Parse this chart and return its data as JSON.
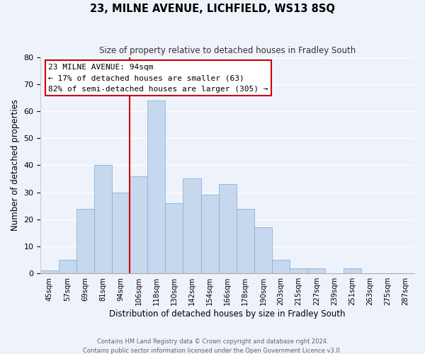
{
  "title": "23, MILNE AVENUE, LICHFIELD, WS13 8SQ",
  "subtitle": "Size of property relative to detached houses in Fradley South",
  "xlabel": "Distribution of detached houses by size in Fradley South",
  "ylabel": "Number of detached properties",
  "footer_line1": "Contains HM Land Registry data © Crown copyright and database right 2024.",
  "footer_line2": "Contains public sector information licensed under the Open Government Licence v3.0.",
  "bin_labels": [
    "45sqm",
    "57sqm",
    "69sqm",
    "81sqm",
    "94sqm",
    "106sqm",
    "118sqm",
    "130sqm",
    "142sqm",
    "154sqm",
    "166sqm",
    "178sqm",
    "190sqm",
    "203sqm",
    "215sqm",
    "227sqm",
    "239sqm",
    "251sqm",
    "263sqm",
    "275sqm",
    "287sqm"
  ],
  "bar_values": [
    1,
    5,
    24,
    40,
    30,
    36,
    64,
    26,
    35,
    29,
    33,
    24,
    17,
    5,
    2,
    2,
    0,
    2,
    0,
    0,
    0
  ],
  "bar_color": "#c5d8ee",
  "bar_edge_color": "#8ab4d8",
  "highlight_x_label": "94sqm",
  "highlight_line_color": "#cc0000",
  "annotation_title": "23 MILNE AVENUE: 94sqm",
  "annotation_line1": "← 17% of detached houses are smaller (63)",
  "annotation_line2": "82% of semi-detached houses are larger (305) →",
  "annotation_box_color": "#ffffff",
  "annotation_box_edgecolor": "#cc0000",
  "ylim": [
    0,
    80
  ],
  "yticks": [
    0,
    10,
    20,
    30,
    40,
    50,
    60,
    70,
    80
  ],
  "background_color": "#eef2fa",
  "grid_color": "#ffffff"
}
